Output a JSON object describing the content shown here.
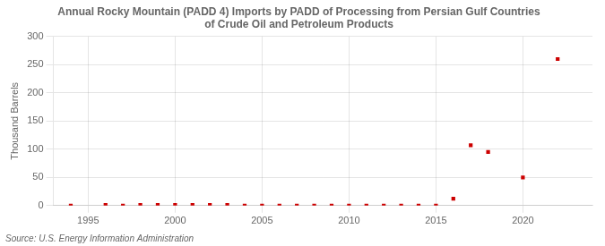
{
  "chart_data": {
    "type": "scatter",
    "title": "Annual Rocky Mountain (PADD 4) Imports by PADD of Processing from Persian Gulf Countries\nof Crude Oil and Petroleum Products",
    "ylabel": "Thousand Barrels",
    "source": "Source: U.S. Energy Information Administration",
    "x": [
      1994,
      1996,
      1997,
      1998,
      1999,
      2000,
      2001,
      2002,
      2003,
      2004,
      2005,
      2006,
      2007,
      2008,
      2009,
      2010,
      2011,
      2012,
      2013,
      2014,
      2015,
      2016,
      2017,
      2018,
      2020,
      2022
    ],
    "values": [
      0,
      1,
      0,
      1,
      1,
      1,
      1,
      1,
      1,
      0,
      0,
      0,
      0,
      0,
      0,
      0,
      0,
      0,
      0,
      0,
      0,
      12,
      107,
      95,
      50,
      260
    ],
    "color": "#cc0000",
    "marker": "square",
    "xlim": [
      1993,
      2024
    ],
    "ylim": [
      0,
      300
    ],
    "xticks": [
      1995,
      2000,
      2005,
      2010,
      2015,
      2020
    ],
    "yticks": [
      0,
      50,
      100,
      150,
      200,
      250,
      300
    ],
    "grid": true
  }
}
